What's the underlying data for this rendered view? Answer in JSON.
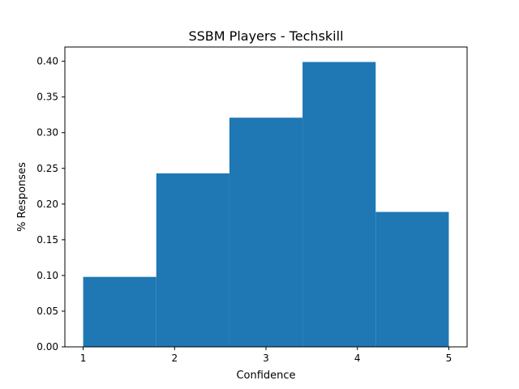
{
  "chart_data": {
    "type": "bar",
    "title": "SSBM Players - Techskill",
    "xlabel": "Confidence",
    "ylabel": "% Responses",
    "bins": [
      {
        "start": 1.0,
        "end": 1.8,
        "value": 0.098
      },
      {
        "start": 1.8,
        "end": 2.6,
        "value": 0.243
      },
      {
        "start": 2.6,
        "end": 3.4,
        "value": 0.321
      },
      {
        "start": 3.4,
        "end": 4.2,
        "value": 0.399
      },
      {
        "start": 4.2,
        "end": 5.0,
        "value": 0.189
      }
    ],
    "xlim": [
      0.8,
      5.2
    ],
    "ylim": [
      0,
      0.42
    ],
    "xticks": [
      1,
      2,
      3,
      4,
      5
    ],
    "xtick_labels": [
      "1",
      "2",
      "3",
      "4",
      "5"
    ],
    "yticks": [
      0,
      0.05,
      0.1,
      0.15,
      0.2,
      0.25,
      0.3,
      0.35,
      0.4
    ],
    "ytick_labels": [
      "0.00",
      "0.05",
      "0.10",
      "0.15",
      "0.20",
      "0.25",
      "0.30",
      "0.35",
      "0.40"
    ],
    "bar_color": "#1f77b4",
    "grid": false,
    "legend": "none"
  }
}
